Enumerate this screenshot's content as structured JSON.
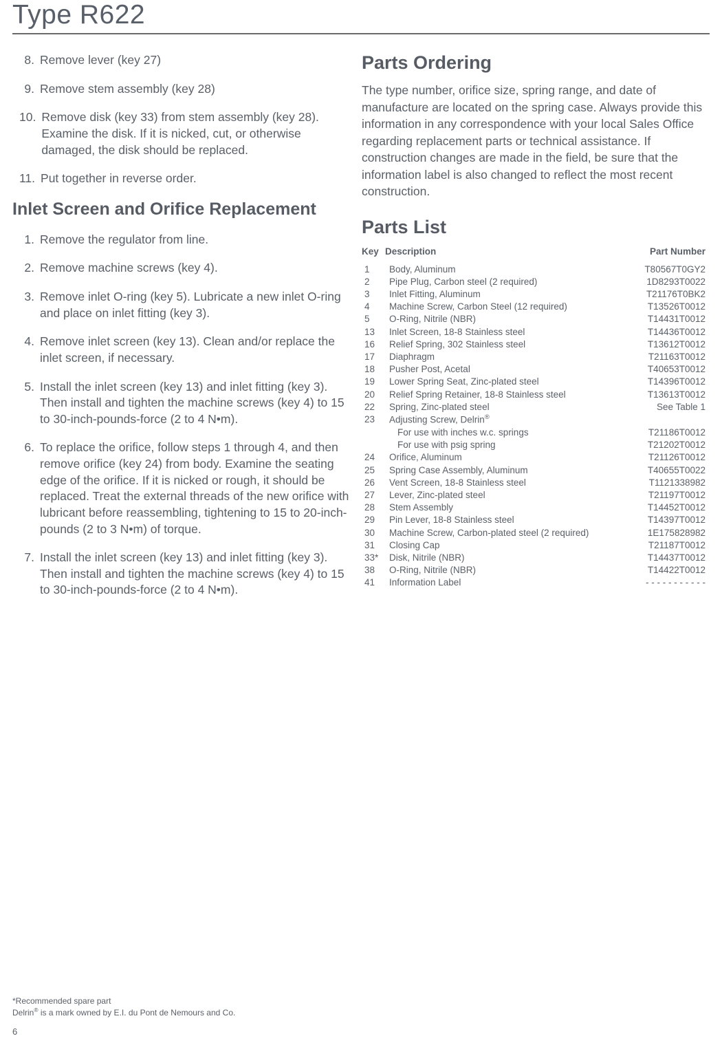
{
  "page": {
    "title": "Type R622",
    "number": "6"
  },
  "left": {
    "initialSteps": [
      {
        "num": "8.",
        "text": "Remove lever (key 27)"
      },
      {
        "num": "9.",
        "text": "Remove stem assembly (key 28)"
      },
      {
        "num": "10.",
        "text": "Remove disk (key 33) from stem assembly (key 28).  Examine the disk. If it is nicked, cut, or otherwise damaged, the disk should be replaced."
      },
      {
        "num": "11.",
        "text": "Put together in reverse order."
      }
    ],
    "section2": {
      "heading": "Inlet Screen and Orifice Replacement",
      "steps": [
        {
          "num": "1.",
          "text": "Remove the regulator from line."
        },
        {
          "num": "2.",
          "text": "Remove machine screws (key 4)."
        },
        {
          "num": "3.",
          "text": "Remove inlet O-ring (key 5).  Lubricate a new inlet O-ring and place on inlet fitting (key 3)."
        },
        {
          "num": "4.",
          "text": "Remove inlet screen (key 13).  Clean and/or replace the inlet screen, if necessary."
        },
        {
          "num": "5.",
          "text": "Install  the  inlet  screen  (key 13) and inlet fitting (key  3).  Then install and tighten the machine screws (key 4) to 15 to 30-inch-pounds-force (2 to 4 N•m)."
        },
        {
          "num": "6.",
          "text": "To replace the orifice, follow steps 1 through 4, and then remove orifice (key 24) from body. Examine the seating edge of the orifice. If it is nicked or rough, it should be replaced.  Treat the external threads of the new orifice with lubricant before reassembling, tightening to 15 to 20-inch-pounds (2 to 3 N•m) of torque."
        },
        {
          "num": "7.",
          "text": "Install the inlet screen (key  13) and inlet fitting (key  3).  Then install  and tighten the machine screws (key 4) to 15 to 30-inch-pounds-force (2 to 4 N•m)."
        }
      ]
    }
  },
  "right": {
    "ordering": {
      "heading": "Parts Ordering",
      "text": "The type number, orifice size, spring range, and date of manufacture are located on the spring case. Always provide this information in any correspondence with your local Sales Office regarding replacement parts or technical assistance.  If construction changes are made in the field, be sure that the information label is also changed to reflect the most recent construction."
    },
    "partsList": {
      "heading": "Parts List",
      "header": {
        "key": "Key",
        "desc": "Description",
        "part": "Part Number"
      },
      "rows": [
        {
          "key": "1",
          "desc": "Body, Aluminum",
          "part": "T80567T0GY2"
        },
        {
          "key": "2",
          "desc": "Pipe Plug, Carbon steel (2 required)",
          "part": "1D8293T0022"
        },
        {
          "key": "3",
          "desc": "Inlet Fitting, Aluminum",
          "part": "T21176T0BK2"
        },
        {
          "key": "4",
          "desc": "Machine Screw, Carbon Steel (12 required)",
          "part": "T13526T0012"
        },
        {
          "key": "5",
          "desc": "O-Ring, Nitrile (NBR)",
          "part": "T14431T0012"
        },
        {
          "key": "13",
          "desc": "Inlet Screen, 18-8 Stainless steel",
          "part": "T14436T0012"
        },
        {
          "key": "16",
          "desc": "Relief Spring, 302 Stainless steel",
          "part": "T13612T0012"
        },
        {
          "key": "17",
          "desc": "Diaphragm",
          "part": "T21163T0012"
        },
        {
          "key": "18",
          "desc": "Pusher Post, Acetal",
          "part": "T40653T0012"
        },
        {
          "key": "19",
          "desc": "Lower Spring Seat, Zinc-plated steel",
          "part": "T14396T0012"
        },
        {
          "key": "20",
          "desc": "Relief Spring Retainer, 18-8 Stainless steel",
          "part": "T13613T0012"
        },
        {
          "key": "22",
          "desc": "Spring, Zinc-plated steel",
          "part": "See Table 1"
        },
        {
          "key": "23",
          "desc": "Adjusting Screw, Delrin",
          "sup": "®",
          "part": ""
        },
        {
          "key": "",
          "desc": "For use with inches w.c. springs",
          "indent": true,
          "part": "T21186T0012"
        },
        {
          "key": "",
          "desc": "For use with psig spring",
          "indent": true,
          "part": "T21202T0012"
        },
        {
          "key": "24",
          "desc": "Orifice, Aluminum",
          "part": "T21126T0012"
        },
        {
          "key": "25",
          "desc": "Spring Case Assembly, Aluminum",
          "part": "T40655T0022"
        },
        {
          "key": "26",
          "desc": "Vent Screen, 18-8 Stainless steel",
          "part": "T1121338982"
        },
        {
          "key": "27",
          "desc": "Lever, Zinc-plated steel",
          "part": "T21197T0012"
        },
        {
          "key": "28",
          "desc": "Stem Assembly",
          "part": "T14452T0012"
        },
        {
          "key": "29",
          "desc": "Pin Lever, 18-8 Stainless steel",
          "part": "T14397T0012"
        },
        {
          "key": "30",
          "desc": "Machine Screw, Carbon-plated steel (2 required)",
          "part": "1E175828982"
        },
        {
          "key": "31",
          "desc": "Closing Cap",
          "part": "T21187T0012"
        },
        {
          "key": "33*",
          "desc": "Disk, Nitrile (NBR)",
          "part": "T14437T0012"
        },
        {
          "key": "38",
          "desc": "O-Ring, Nitrile (NBR)",
          "part": "T14422T0012"
        },
        {
          "key": "41",
          "desc": "Information Label",
          "part": "- - - - - - - - - - -"
        }
      ]
    }
  },
  "footnote": {
    "line1": "*Recommended spare part",
    "line2_pre": "Delrin",
    "line2_sup": "®",
    "line2_post": " is a mark owned by E.I. du Pont de Nemours and Co."
  }
}
